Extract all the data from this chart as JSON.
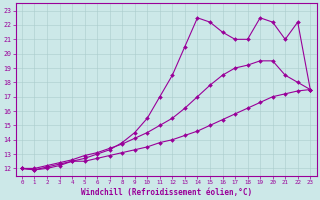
{
  "xlabel": "Windchill (Refroidissement éolien,°C)",
  "bg_color": "#cce8e8",
  "line_color": "#990099",
  "xlim": [
    -0.5,
    23.5
  ],
  "ylim": [
    11.5,
    23.5
  ],
  "xticks": [
    0,
    1,
    2,
    3,
    4,
    5,
    6,
    7,
    8,
    9,
    10,
    11,
    12,
    13,
    14,
    15,
    16,
    17,
    18,
    19,
    20,
    21,
    22,
    23
  ],
  "yticks": [
    12,
    13,
    14,
    15,
    16,
    17,
    18,
    19,
    20,
    21,
    22,
    23
  ],
  "line1_x": [
    0,
    1,
    2,
    3,
    4,
    5,
    6,
    7,
    8,
    9,
    10,
    11,
    12,
    13,
    14,
    15,
    16,
    17,
    18,
    19,
    20,
    21,
    22,
    23
  ],
  "line1_y": [
    12,
    11.9,
    12.0,
    12.2,
    12.5,
    12.5,
    12.7,
    12.9,
    13.1,
    13.3,
    13.5,
    13.8,
    14.0,
    14.3,
    14.6,
    15.0,
    15.4,
    15.8,
    16.2,
    16.6,
    17.0,
    17.2,
    17.4,
    17.5
  ],
  "line2_x": [
    0,
    1,
    2,
    3,
    4,
    5,
    6,
    7,
    8,
    9,
    10,
    11,
    12,
    13,
    14,
    15,
    16,
    17,
    18,
    19,
    20,
    21,
    22,
    23
  ],
  "line2_y": [
    12,
    12.0,
    12.2,
    12.4,
    12.6,
    12.9,
    13.1,
    13.4,
    13.7,
    14.1,
    14.5,
    15.0,
    15.5,
    16.2,
    17.0,
    17.8,
    18.5,
    19.0,
    19.2,
    19.5,
    19.5,
    18.5,
    18.0,
    17.5
  ],
  "line3_x": [
    0,
    1,
    2,
    3,
    4,
    5,
    6,
    7,
    8,
    9,
    10,
    11,
    12,
    13,
    14,
    15,
    16,
    17,
    18,
    19,
    20,
    21,
    22,
    23
  ],
  "line3_y": [
    12,
    11.9,
    12.1,
    12.3,
    12.5,
    12.7,
    13.0,
    13.3,
    13.8,
    14.5,
    15.5,
    17.0,
    18.5,
    20.5,
    22.5,
    22.2,
    21.5,
    21.0,
    21.0,
    22.5,
    22.2,
    21.0,
    22.2,
    17.5
  ]
}
